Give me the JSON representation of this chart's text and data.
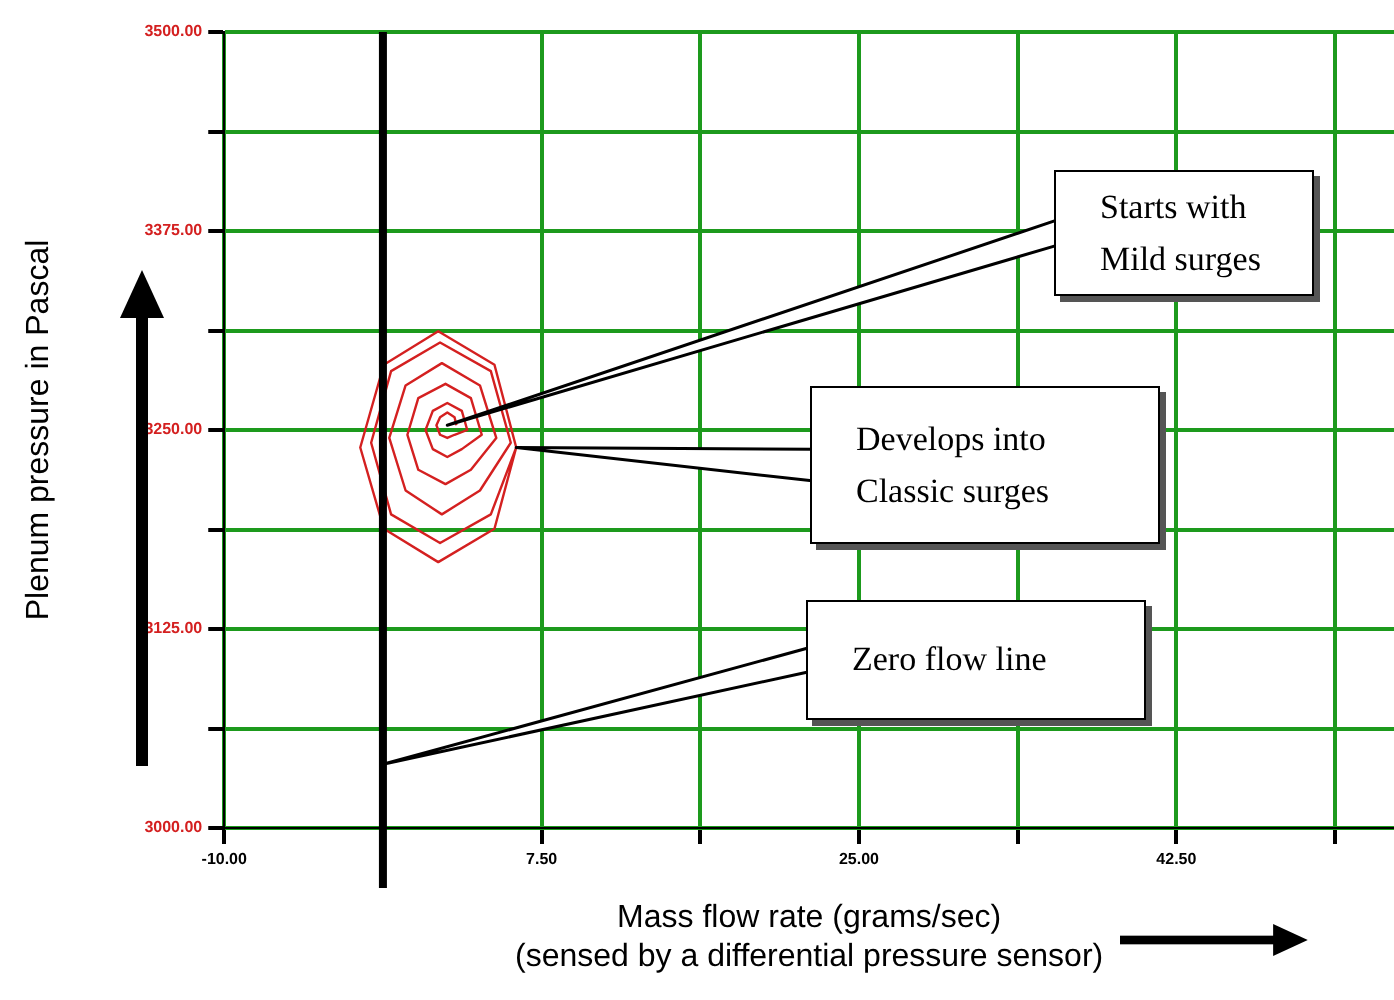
{
  "chart_data": {
    "type": "line",
    "xlabel": "Mass flow rate (grams/sec)\n(sensed by a differential pressure sensor)",
    "ylabel": "Plenum pressure in Pascal",
    "xlim": [
      -10,
      54.5
    ],
    "ylim": [
      3000,
      3500
    ],
    "xticks": [
      {
        "value": -10,
        "label": "-10.00"
      },
      {
        "value": -1.25,
        "label": null
      },
      {
        "value": 7.5,
        "label": "7.50"
      },
      {
        "value": 16.25,
        "label": null
      },
      {
        "value": 25,
        "label": "25.00"
      },
      {
        "value": 33.75,
        "label": null
      },
      {
        "value": 42.5,
        "label": "42.50"
      },
      {
        "value": 51.25,
        "label": null
      }
    ],
    "yticks": [
      {
        "value": 3000,
        "label": "3000.00"
      },
      {
        "value": 3062.5,
        "label": null
      },
      {
        "value": 3125,
        "label": "3125.00"
      },
      {
        "value": 3187.5,
        "label": null
      },
      {
        "value": 3250,
        "label": "3250.00"
      },
      {
        "value": 3312.5,
        "label": null
      },
      {
        "value": 3375,
        "label": "3375.00"
      },
      {
        "value": 3437.5,
        "label": null
      },
      {
        "value": 3500,
        "label": "3500.00"
      }
    ],
    "grid": true,
    "marker": "none",
    "line_style": "solid",
    "series": [
      {
        "color": "#d42020",
        "x": [
          2.8,
          2.7,
          2.3,
          1.9,
          1.7,
          1.9,
          2.3,
          2.7,
          3.4,
          3.1,
          2.3,
          1.5,
          1.1,
          1.5,
          2.3,
          3.1,
          4.2,
          3.6,
          2.2,
          0.7,
          0.1,
          0.7,
          2.2,
          3.6,
          5.0,
          4.1,
          2.0,
          0.0,
          -0.9,
          0.0,
          2.0,
          4.1,
          5.8,
          4.7,
          1.9,
          -0.8,
          -1.9,
          -0.8,
          1.9,
          4.7,
          6.1,
          4.9,
          1.8,
          -1.2,
          -2.5,
          -1.2,
          1.8,
          4.9,
          6.1
        ],
        "values": [
          3253,
          3258,
          3261,
          3258,
          3253,
          3247,
          3245,
          3247,
          3250,
          3262,
          3267,
          3262,
          3250,
          3238,
          3233,
          3238,
          3247,
          3270,
          3279,
          3270,
          3247,
          3225,
          3216,
          3225,
          3245,
          3278,
          3292,
          3278,
          3245,
          3212,
          3197,
          3212,
          3242,
          3287,
          3305,
          3287,
          3242,
          3197,
          3179,
          3197,
          3239,
          3291,
          3312,
          3291,
          3239,
          3188,
          3167,
          3188,
          3239
        ]
      }
    ],
    "ref_lines": [
      {
        "axis": "x",
        "value": -1.25,
        "color": "#000000"
      }
    ],
    "annotations": [
      {
        "text": "Starts with Mild surges",
        "x": 2.3,
        "y": 3253
      },
      {
        "text": "Develops into Classic surges",
        "x": 6.1,
        "y": 3239
      },
      {
        "text": "Zero flow line",
        "x": -1.25,
        "y": 3040
      }
    ]
  }
}
